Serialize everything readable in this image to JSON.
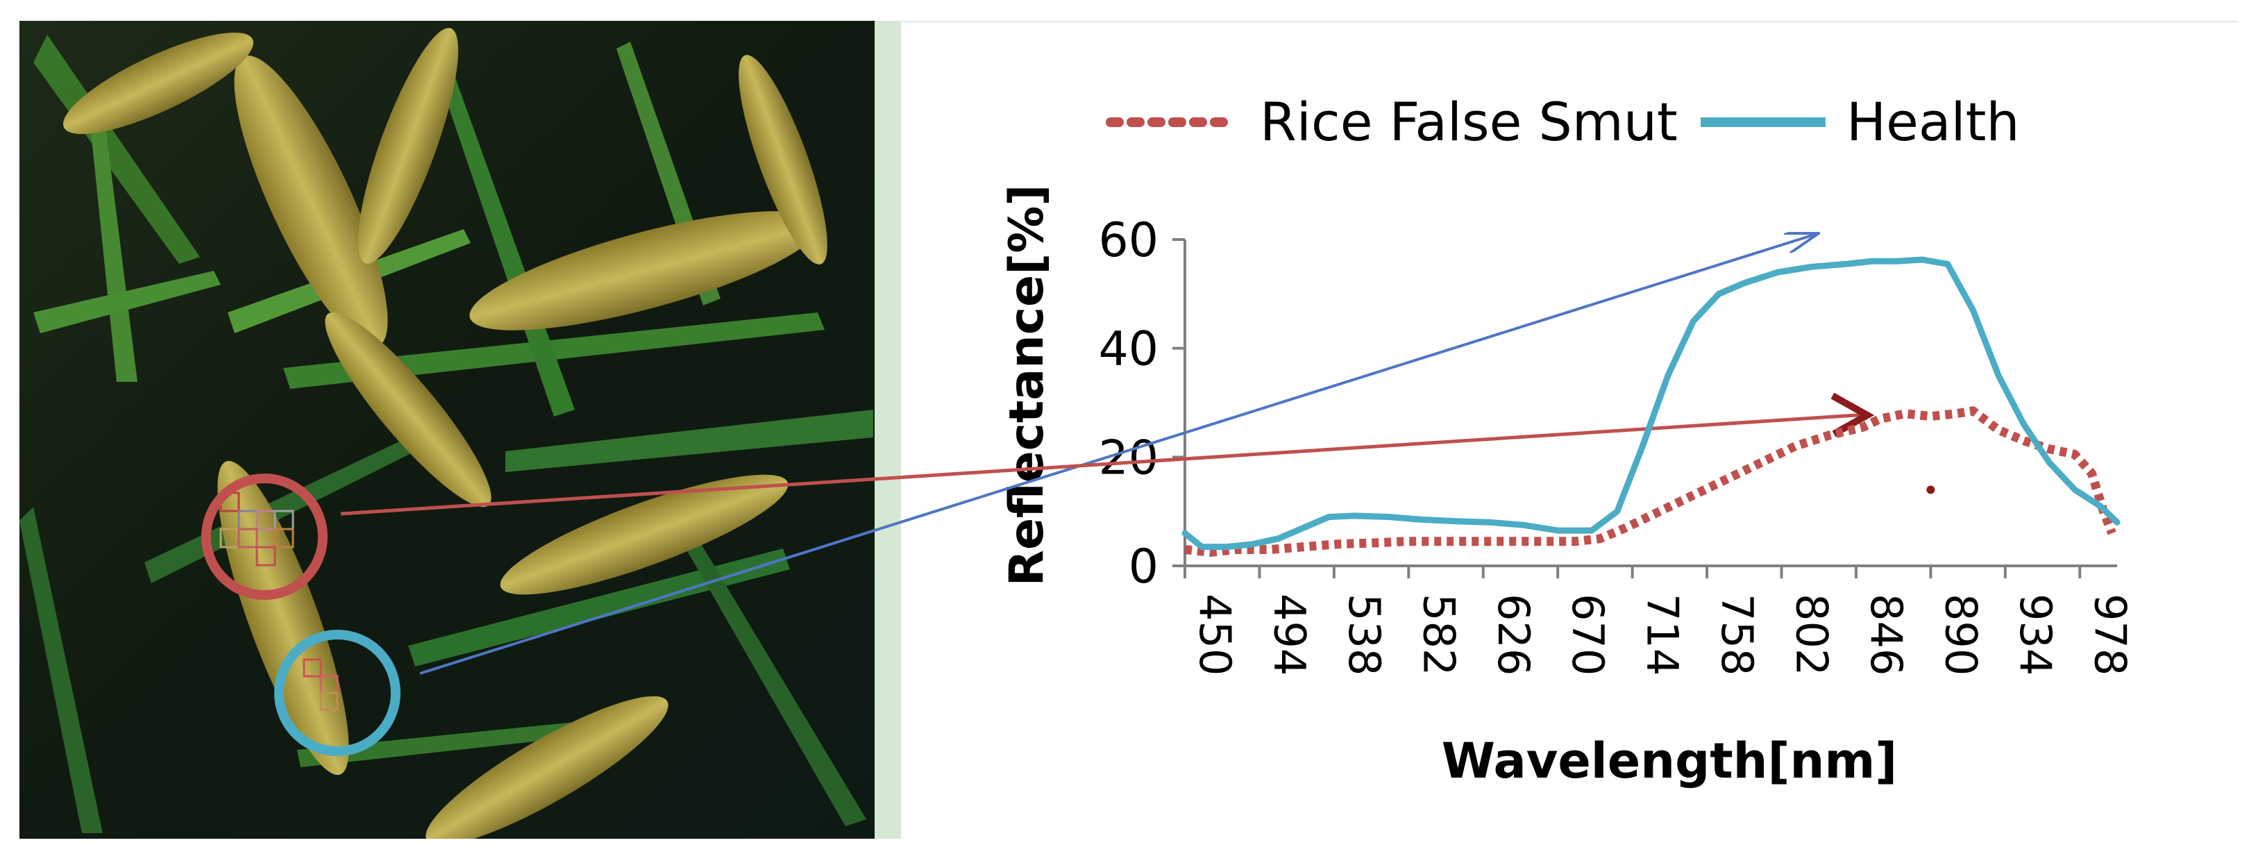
{
  "colors": {
    "disease": "#c0504d",
    "disease_dark": "#8b1a1a",
    "health": "#4bacc6",
    "healthy_arrow": "#4f76c4",
    "axis": "#7f7f7f",
    "panel_strip": "#d5e8d4"
  },
  "photo": {
    "description_icon": "rice-panicle-photo",
    "markers": [
      {
        "name": "rice-false-smut-marker",
        "color": "#c0504d"
      },
      {
        "name": "health-marker",
        "color": "#4bacc6"
      }
    ]
  },
  "chart_data": {
    "type": "line",
    "legend_position": "top",
    "ylabel": "Reflectance[%]",
    "xlabel": "Wavelength[nm]",
    "xlim": [
      450,
      1000
    ],
    "ylim": [
      0,
      60
    ],
    "y_ticks": [
      "0",
      "20",
      "40",
      "60"
    ],
    "x_ticks": [
      "450",
      "494",
      "538",
      "582",
      "626",
      "670",
      "714",
      "758",
      "802",
      "846",
      "890",
      "934",
      "978"
    ],
    "series": [
      {
        "name": "Rice False Smut",
        "style": "dotted",
        "points": [
          [
            450,
            3
          ],
          [
            465,
            2.5
          ],
          [
            480,
            3
          ],
          [
            500,
            3
          ],
          [
            520,
            3.5
          ],
          [
            540,
            4
          ],
          [
            560,
            4.2
          ],
          [
            580,
            4.5
          ],
          [
            600,
            4.5
          ],
          [
            620,
            4.5
          ],
          [
            640,
            4.5
          ],
          [
            660,
            4.5
          ],
          [
            680,
            4.5
          ],
          [
            695,
            5
          ],
          [
            710,
            7
          ],
          [
            730,
            10
          ],
          [
            750,
            13
          ],
          [
            770,
            16
          ],
          [
            790,
            19
          ],
          [
            810,
            22
          ],
          [
            830,
            24
          ],
          [
            850,
            25.5
          ],
          [
            860,
            27
          ],
          [
            875,
            28
          ],
          [
            890,
            27.5
          ],
          [
            905,
            28
          ],
          [
            915,
            28.5
          ],
          [
            930,
            25
          ],
          [
            945,
            23
          ],
          [
            960,
            21.5
          ],
          [
            975,
            20.5
          ],
          [
            985,
            17
          ],
          [
            992,
            10
          ],
          [
            997,
            6
          ]
        ]
      },
      {
        "name": "Health",
        "style": "solid",
        "points": [
          [
            450,
            6
          ],
          [
            460,
            3.5
          ],
          [
            475,
            3.5
          ],
          [
            490,
            4
          ],
          [
            505,
            5
          ],
          [
            520,
            7
          ],
          [
            535,
            9
          ],
          [
            550,
            9.2
          ],
          [
            570,
            9
          ],
          [
            590,
            8.5
          ],
          [
            610,
            8.2
          ],
          [
            630,
            8
          ],
          [
            650,
            7.5
          ],
          [
            670,
            6.5
          ],
          [
            690,
            6.5
          ],
          [
            705,
            10
          ],
          [
            720,
            22
          ],
          [
            735,
            35
          ],
          [
            750,
            45
          ],
          [
            765,
            50
          ],
          [
            780,
            52
          ],
          [
            800,
            54
          ],
          [
            820,
            55
          ],
          [
            840,
            55.5
          ],
          [
            855,
            56
          ],
          [
            870,
            56
          ],
          [
            885,
            56.3
          ],
          [
            900,
            55.5
          ],
          [
            915,
            47
          ],
          [
            930,
            35
          ],
          [
            945,
            26
          ],
          [
            960,
            19
          ],
          [
            975,
            14
          ],
          [
            990,
            11
          ],
          [
            1000,
            8
          ]
        ]
      }
    ],
    "annotations": [
      {
        "type": "stray-point",
        "series": "Rice False Smut",
        "x": 890,
        "y": 14
      }
    ]
  }
}
